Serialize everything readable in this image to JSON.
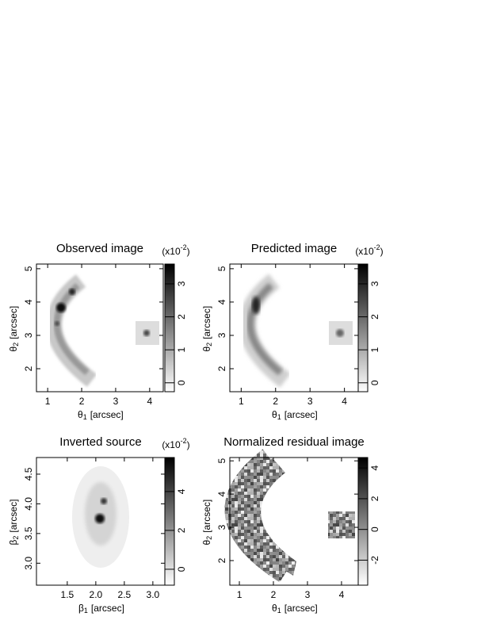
{
  "chart_data": [
    {
      "type": "image",
      "title": "Observed image",
      "xlabel": {
        "symbol": "θ",
        "sub": "1",
        "unit": "[arcsec]"
      },
      "ylabel": {
        "symbol": "θ",
        "sub": "2",
        "unit": "[arcsec]"
      },
      "xlim": [
        0.67,
        4.4
      ],
      "xticks": [
        1,
        2,
        3,
        4
      ],
      "ylim": [
        1.31,
        5.14
      ],
      "yticks": [
        2,
        3,
        4,
        5
      ],
      "colorbar": {
        "lim": [
          -0.27,
          3.6
        ],
        "ticks": [
          0,
          1,
          2,
          3
        ],
        "scale": {
          "base": "(x10",
          "exp": "-2",
          "close": ")"
        }
      }
    },
    {
      "type": "image",
      "title": "Predicted image",
      "xlabel": {
        "symbol": "θ",
        "sub": "1",
        "unit": "[arcsec]"
      },
      "ylabel": {
        "symbol": "θ",
        "sub": "2",
        "unit": "[arcsec]"
      },
      "xlim": [
        0.67,
        4.4
      ],
      "xticks": [
        1,
        2,
        3,
        4
      ],
      "ylim": [
        1.31,
        5.14
      ],
      "yticks": [
        2,
        3,
        4,
        5
      ],
      "colorbar": {
        "lim": [
          -0.27,
          3.6
        ],
        "ticks": [
          0,
          1,
          2,
          3
        ],
        "scale": {
          "base": "(x10",
          "exp": "-2",
          "close": ")"
        }
      }
    },
    {
      "type": "image",
      "title": "Inverted source",
      "xlabel": {
        "symbol": "β",
        "sub": "1",
        "unit": "[arcsec]"
      },
      "ylabel": {
        "symbol": "β",
        "sub": "2",
        "unit": "[arcsec]"
      },
      "xlim": [
        0.96,
        3.21
      ],
      "xticks": [
        1.5,
        {
          "value": 2,
          "label": "2.0"
        },
        2.5,
        {
          "value": 3,
          "label": "3.0"
        }
      ],
      "ylim": [
        2.63,
        4.78
      ],
      "yticks": [
        {
          "value": 3,
          "label": "3.0"
        },
        3.5,
        {
          "value": 4,
          "label": "4.0"
        },
        4.5
      ],
      "colorbar": {
        "lim": [
          -0.82,
          5.75
        ],
        "ticks": [
          0,
          2,
          4
        ],
        "scale": {
          "base": "(x10",
          "exp": "-2",
          "close": ")"
        }
      }
    },
    {
      "type": "image",
      "title": "Normalized residual image",
      "xlabel": {
        "symbol": "θ",
        "sub": "1",
        "unit": "[arcsec]"
      },
      "ylabel": {
        "symbol": "θ",
        "sub": "2",
        "unit": "[arcsec]"
      },
      "xlim": [
        0.72,
        4.49
      ],
      "xticks": [
        1,
        2,
        3,
        4
      ],
      "ylim": [
        1.26,
        5.1
      ],
      "yticks": [
        2,
        3,
        4,
        5
      ],
      "colorbar": {
        "lim": [
          -3.63,
          4.68
        ],
        "ticks": [
          -2,
          0,
          2,
          4
        ]
      }
    }
  ]
}
